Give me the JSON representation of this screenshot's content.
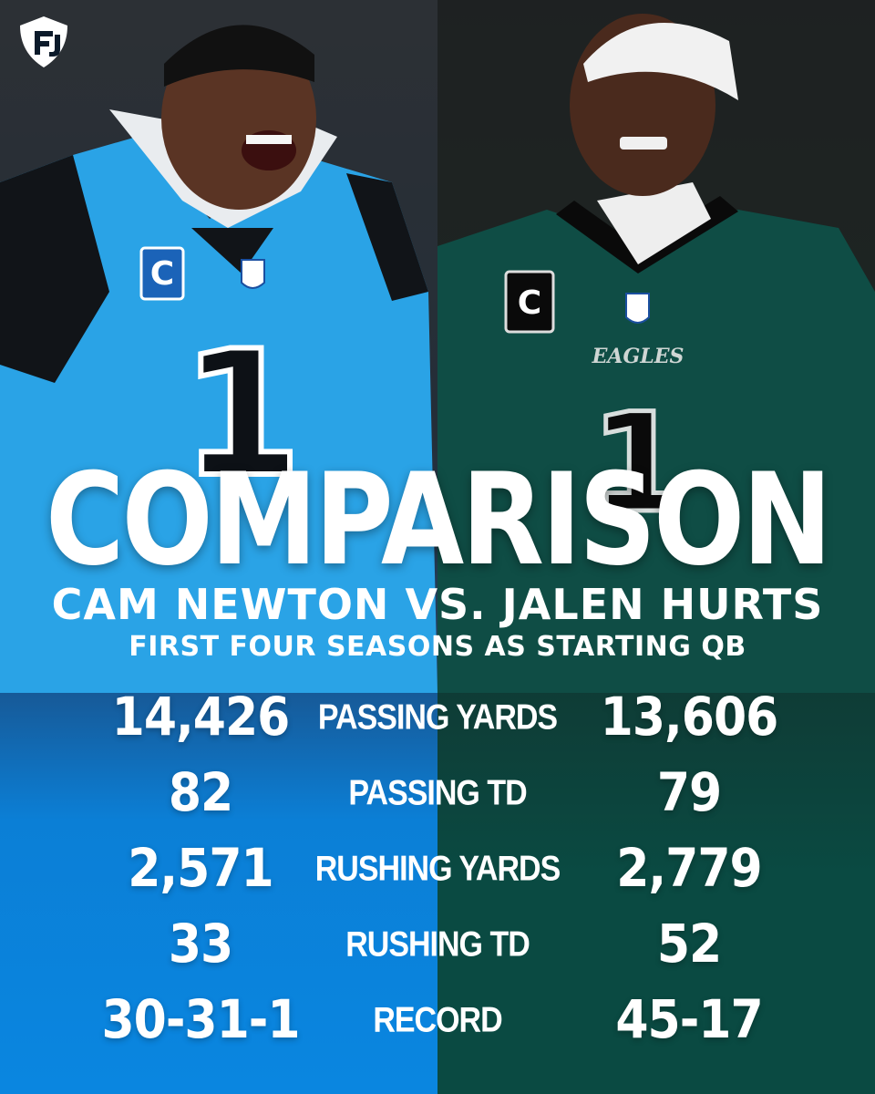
{
  "headline": "COMPARISON",
  "matchup": "CAM NEWTON VS. JALEN HURTS",
  "subtitle": "FIRST FOUR SEASONS AS STARTING QB",
  "left_player": {
    "team_color": "#0a86e0",
    "jersey_number": "1",
    "captain_patch": "C"
  },
  "right_player": {
    "team_color": "#0a4a42",
    "jersey_number": "1",
    "captain_patch": "C",
    "chest_wordmark": "EAGLES"
  },
  "logo": {
    "icon": "fanduel-shield-logo"
  },
  "stats": [
    {
      "label": "PASSING YARDS",
      "left": "14,426",
      "right": "13,606"
    },
    {
      "label": "PASSING TD",
      "left": "82",
      "right": "79"
    },
    {
      "label": "RUSHING YARDS",
      "left": "2,571",
      "right": "2,779"
    },
    {
      "label": "RUSHING TD",
      "left": "33",
      "right": "52"
    },
    {
      "label": "RECORD",
      "left": "30-31-1",
      "right": "45-17"
    }
  ]
}
